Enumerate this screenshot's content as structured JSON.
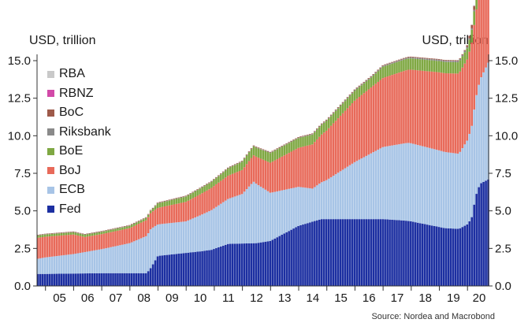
{
  "chart_data": {
    "type": "bar",
    "stacked": true,
    "title": "",
    "xlabel": "",
    "ylabel_left": "USD, trillion",
    "ylabel_right": "USD, trillion",
    "ylim": [
      0,
      15
    ],
    "yticks": [
      "0.0",
      "2.5",
      "5.0",
      "7.5",
      "10.0",
      "12.5",
      "15.0"
    ],
    "ytick_values": [
      0,
      2.5,
      5,
      7.5,
      10,
      12.5,
      15
    ],
    "x_tick_labels": [
      "05",
      "06",
      "07",
      "08",
      "09",
      "10",
      "11",
      "12",
      "13",
      "14",
      "15",
      "16",
      "17",
      "18",
      "19",
      "20"
    ],
    "x_start": 2004.7,
    "x_end": 2020.75,
    "bar_period": "monthly",
    "grid": false,
    "legend_placement": "top-left",
    "source": "Source: Nordea and Macrobond",
    "series": [
      {
        "name": "Fed",
        "color": "#1c2fa1",
        "points": [
          [
            2004.7,
            0.8
          ],
          [
            2005,
            0.8
          ],
          [
            2007,
            0.85
          ],
          [
            2008.6,
            0.85
          ],
          [
            2008.75,
            1.2
          ],
          [
            2009,
            2.0
          ],
          [
            2010,
            2.2
          ],
          [
            2010.5,
            2.3
          ],
          [
            2010.9,
            2.4
          ],
          [
            2011.5,
            2.8
          ],
          [
            2012.5,
            2.85
          ],
          [
            2013,
            3.0
          ],
          [
            2014,
            4.0
          ],
          [
            2014.8,
            4.45
          ],
          [
            2015,
            4.45
          ],
          [
            2017,
            4.45
          ],
          [
            2017.8,
            4.35
          ],
          [
            2018,
            4.3
          ],
          [
            2019.2,
            3.85
          ],
          [
            2019.7,
            3.8
          ],
          [
            2019.9,
            4.0
          ],
          [
            2020.0,
            4.1
          ],
          [
            2020.15,
            4.5
          ],
          [
            2020.3,
            6.0
          ],
          [
            2020.45,
            6.8
          ],
          [
            2020.75,
            7.1
          ]
        ]
      },
      {
        "name": "ECB",
        "color": "#a7c4e6",
        "points": [
          [
            2004.7,
            1.0
          ],
          [
            2005,
            1.1
          ],
          [
            2006,
            1.3
          ],
          [
            2007,
            1.6
          ],
          [
            2008,
            2.0
          ],
          [
            2008.75,
            2.6
          ],
          [
            2009,
            2.1
          ],
          [
            2010,
            2.1
          ],
          [
            2011,
            2.7
          ],
          [
            2012,
            3.3
          ],
          [
            2012.4,
            4.1
          ],
          [
            2013,
            3.2
          ],
          [
            2014,
            2.6
          ],
          [
            2014.5,
            2.2
          ],
          [
            2015,
            2.6
          ],
          [
            2016,
            3.8
          ],
          [
            2017,
            4.8
          ],
          [
            2017.9,
            5.2
          ],
          [
            2018,
            5.2
          ],
          [
            2019,
            5.1
          ],
          [
            2019.7,
            5.0
          ],
          [
            2020,
            5.6
          ],
          [
            2020.3,
            6.5
          ],
          [
            2020.75,
            7.8
          ]
        ]
      },
      {
        "name": "BoJ",
        "color": "#e86a5a",
        "points": [
          [
            2004.7,
            1.4
          ],
          [
            2006,
            1.3
          ],
          [
            2006.4,
            1.0
          ],
          [
            2007,
            1.0
          ],
          [
            2008,
            1.0
          ],
          [
            2009,
            1.1
          ],
          [
            2010,
            1.3
          ],
          [
            2011,
            1.5
          ],
          [
            2012,
            1.6
          ],
          [
            2013,
            2.0
          ],
          [
            2014,
            2.6
          ],
          [
            2015,
            3.3
          ],
          [
            2016,
            4.1
          ],
          [
            2017,
            4.6
          ],
          [
            2018,
            4.9
          ],
          [
            2019,
            5.2
          ],
          [
            2020,
            5.4
          ],
          [
            2020.75,
            6.1
          ]
        ]
      },
      {
        "name": "BoE",
        "color": "#7fa843",
        "points": [
          [
            2004.7,
            0.15
          ],
          [
            2008.8,
            0.15
          ],
          [
            2009.0,
            0.3
          ],
          [
            2010,
            0.35
          ],
          [
            2011,
            0.4
          ],
          [
            2012,
            0.55
          ],
          [
            2013,
            0.65
          ],
          [
            2016.6,
            0.65
          ],
          [
            2017,
            0.75
          ],
          [
            2020,
            0.75
          ],
          [
            2020.3,
            0.95
          ],
          [
            2020.75,
            1.05
          ]
        ]
      },
      {
        "name": "Riksbank",
        "color": "#8a8a8a",
        "points": [
          [
            2004.7,
            0.02
          ],
          [
            2014,
            0.03
          ],
          [
            2016,
            0.05
          ],
          [
            2020.75,
            0.1
          ]
        ]
      },
      {
        "name": "BoC",
        "color": "#9e5a4a",
        "points": [
          [
            2004.7,
            0.03
          ],
          [
            2019.9,
            0.05
          ],
          [
            2020.2,
            0.25
          ],
          [
            2020.75,
            0.4
          ]
        ]
      },
      {
        "name": "RBNZ",
        "color": "#d24aa8",
        "points": [
          [
            2004.7,
            0.0
          ],
          [
            2020.1,
            0.0
          ],
          [
            2020.4,
            0.03
          ],
          [
            2020.75,
            0.06
          ]
        ]
      },
      {
        "name": "RBA",
        "color": "#c9c9c9",
        "points": [
          [
            2004.7,
            0.0
          ],
          [
            2020.1,
            0.0
          ],
          [
            2020.4,
            0.1
          ],
          [
            2020.75,
            0.15
          ]
        ]
      }
    ],
    "legend_entries": [
      "RBA",
      "RBNZ",
      "BoC",
      "Riksbank",
      "BoE",
      "BoJ",
      "ECB",
      "Fed"
    ]
  }
}
